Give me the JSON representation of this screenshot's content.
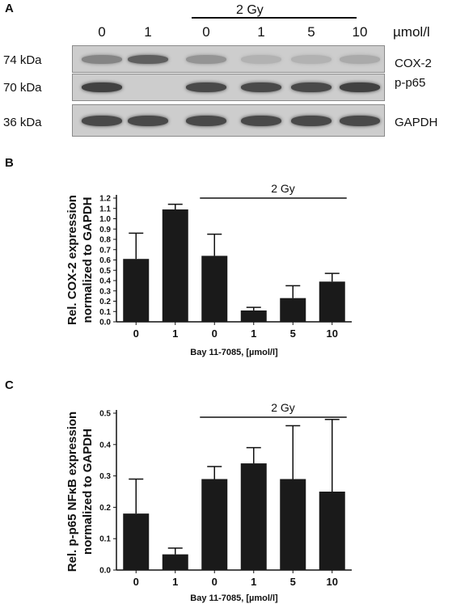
{
  "panel_a": {
    "letter": "A",
    "condition_label": "2 Gy",
    "lanes": [
      "0",
      "1",
      "0",
      "1",
      "5",
      "10"
    ],
    "unit": "µmol/l",
    "mw_labels": [
      "74 kDa",
      "70 kDa",
      "36 kDa"
    ],
    "protein_labels": [
      "COX-2",
      "p-p65",
      "GAPDH"
    ],
    "band_intensity": {
      "COX-2": [
        0.45,
        0.7,
        0.35,
        0.15,
        0.15,
        0.2
      ],
      "p-p65": [
        0.9,
        0.0,
        0.85,
        0.85,
        0.85,
        0.9
      ],
      "GAPDH": [
        0.85,
        0.85,
        0.85,
        0.85,
        0.85,
        0.85
      ]
    }
  },
  "chart_data": [
    {
      "panel": "B",
      "type": "bar",
      "categories": [
        "0",
        "1",
        "0",
        "1",
        "5",
        "10"
      ],
      "values": [
        0.61,
        1.09,
        0.64,
        0.11,
        0.23,
        0.39
      ],
      "errors": [
        0.25,
        0.05,
        0.21,
        0.03,
        0.12,
        0.08
      ],
      "annotation": "2 Gy",
      "annotation_span": [
        2,
        5
      ],
      "xlabel": "Bay 11-7085, [µmol/l]",
      "ylabel": "Rel. COX-2 expression normalized to GAPDH",
      "ylim": [
        0,
        1.2
      ],
      "yticks": [
        "0.0",
        "0.1",
        "0.2",
        "0.3",
        "0.4",
        "0.5",
        "0.6",
        "0.7",
        "0.8",
        "0.9",
        "1.0",
        "1.1",
        "1.2"
      ],
      "bar_color": "#1a1a1a"
    },
    {
      "panel": "C",
      "type": "bar",
      "categories": [
        "0",
        "1",
        "0",
        "1",
        "5",
        "10"
      ],
      "values": [
        0.18,
        0.05,
        0.29,
        0.34,
        0.29,
        0.25
      ],
      "errors": [
        0.11,
        0.02,
        0.04,
        0.05,
        0.17,
        0.23
      ],
      "annotation": "2 Gy",
      "annotation_span": [
        2,
        5
      ],
      "xlabel": "Bay 11-7085, [µmol/l]",
      "ylabel": "Rel. p-p65 NFκB expression normalized to GAPDH",
      "ylim": [
        0,
        0.5
      ],
      "yticks": [
        "0.0",
        "0.1",
        "0.2",
        "0.3",
        "0.4",
        "0.5"
      ],
      "bar_color": "#1a1a1a"
    }
  ]
}
